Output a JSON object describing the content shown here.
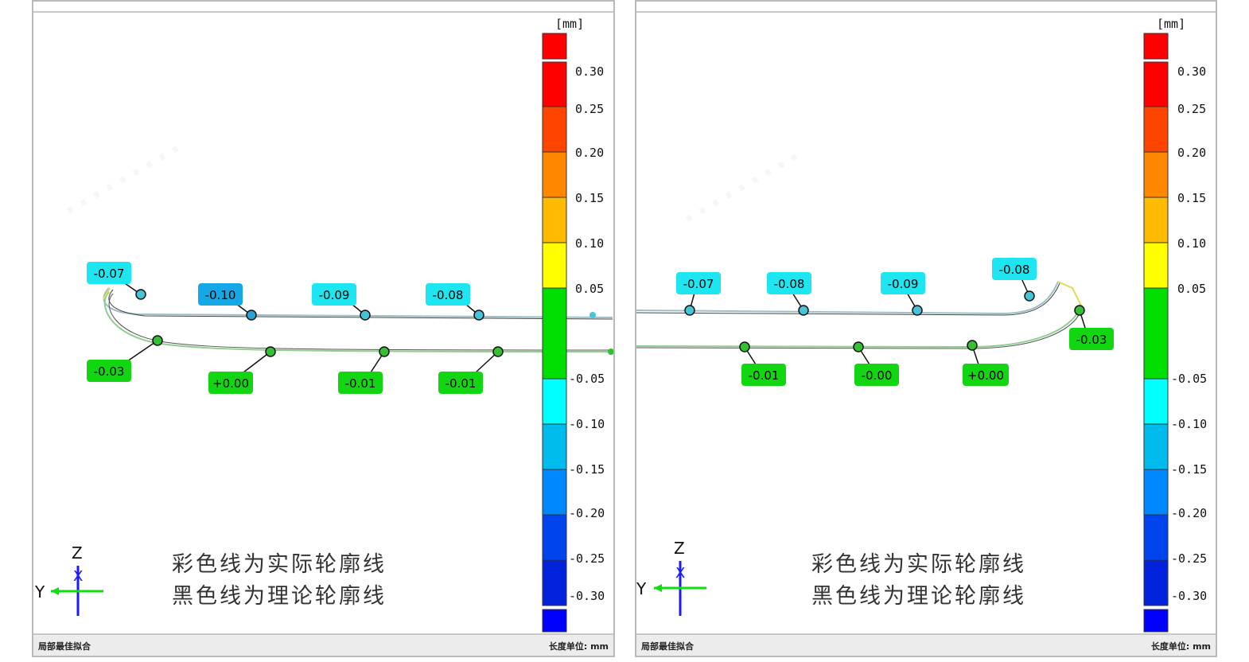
{
  "panels": [
    {
      "id": "left",
      "footer_left": "局部最佳拟合",
      "footer_right": "长度单位: mm",
      "legend_line1": "彩色线为实际轮廓线",
      "legend_line2": "黑色线为理论轮廓线",
      "axis_z": "Z",
      "axis_y": "Y",
      "scale_unit": "[mm]",
      "callouts_top": [
        "-0.07",
        "-0.10",
        "-0.09",
        "-0.08"
      ],
      "callouts_bottom": [
        "-0.03",
        "+0.00",
        "-0.01",
        "-0.01"
      ]
    },
    {
      "id": "right",
      "footer_left": "局部最佳拟合",
      "footer_right": "长度单位: mm",
      "legend_line1": "彩色线为实际轮廓线",
      "legend_line2": "黑色线为理论轮廓线",
      "axis_z": "Z",
      "axis_y": "Y",
      "scale_unit": "[mm]",
      "callouts_top": [
        "-0.07",
        "-0.08",
        "-0.09",
        "-0.08"
      ],
      "callouts_bottom": [
        "-0.01",
        "-0.00",
        "+0.00",
        "-0.03"
      ]
    }
  ],
  "color_scale": {
    "ticks": [
      "0.30",
      "0.25",
      "0.20",
      "0.15",
      "0.10",
      "0.05",
      "-0.05",
      "-0.10",
      "-0.15",
      "-0.20",
      "-0.25",
      "-0.30"
    ],
    "colors": {
      "over": "#ff0000",
      "band_030": "#ff0000",
      "band_025": "#ff4400",
      "band_020": "#ff8800",
      "band_015": "#ffbb00",
      "band_010": "#ffff00",
      "band_green": "#00dd00",
      "band_m005": "#00ffff",
      "band_m010": "#00bbee",
      "band_m015": "#0088ff",
      "band_m020": "#0044ee",
      "band_m025": "#0022dd",
      "band_m030": "#0000ff",
      "under": "#0000ff"
    }
  },
  "colors": {
    "cyan_label": "#1ee6f0",
    "blue_label": "#14a8e6",
    "green_label": "#11d611",
    "axis_blue": "#1a1aff",
    "axis_green": "#11dd11"
  }
}
